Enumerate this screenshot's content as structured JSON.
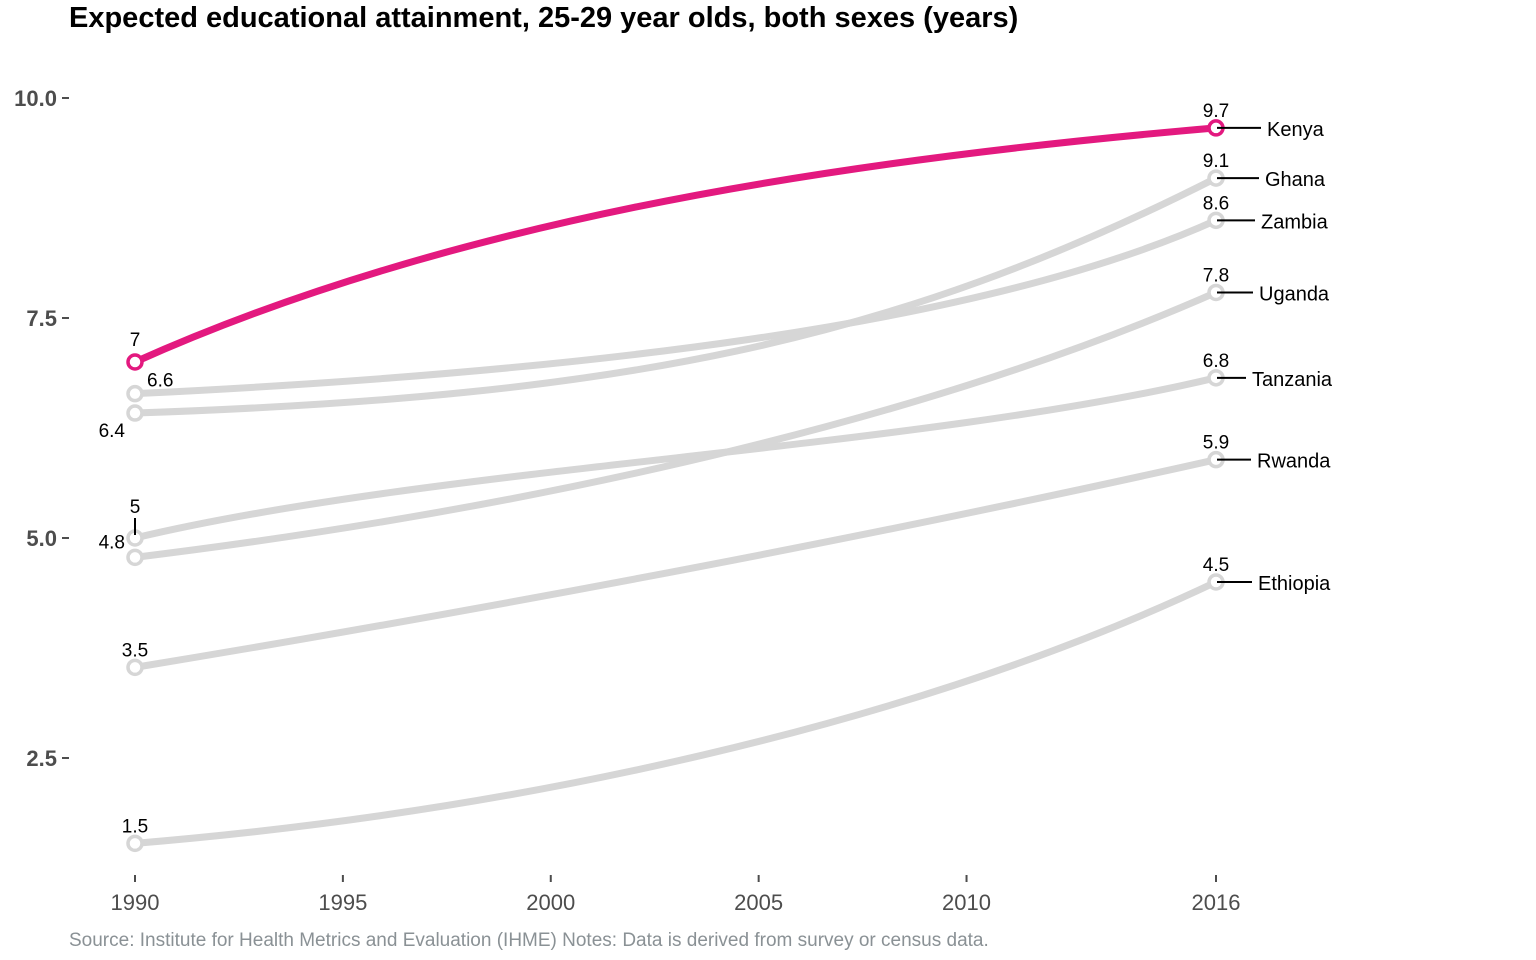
{
  "title": "Expected educational attainment, 25-29 year olds, both sexes (years)",
  "source": "Source: Institute for Health Metrics and Evaluation (IHME) Notes: Data is derived from survey or census data.",
  "colors": {
    "highlight": "#e3197f",
    "muted": "#d6d6d6",
    "axis_text": "#4d4d4d",
    "source_text": "#8a9195"
  },
  "chart_data": {
    "type": "line",
    "title": "Expected educational attainment, 25-29 year olds, both sexes (years)",
    "xlabel": "",
    "ylabel": "",
    "x": [
      1990,
      2016
    ],
    "x_ticks": [
      1990,
      1995,
      2000,
      2005,
      2010,
      2016
    ],
    "x_tick_labels": [
      "1990",
      "1995",
      "2000",
      "2005",
      "2010",
      "2016"
    ],
    "y_ticks": [
      2.5,
      5.0,
      7.5,
      10.0
    ],
    "y_tick_labels": [
      "2.5",
      "5.0",
      "7.5",
      "10.0"
    ],
    "xlim": [
      1990,
      2016
    ],
    "ylim": [
      1.5,
      10.0
    ],
    "grid": false,
    "legend": "direct labels at right end of lines",
    "series": [
      {
        "name": "Kenya",
        "values": [
          7.0,
          9.66
        ],
        "start_label": "7",
        "end_label": "9.7",
        "highlight": true
      },
      {
        "name": "Ghana",
        "values": [
          6.42,
          9.09
        ],
        "start_label": "6.4",
        "end_label": "9.1",
        "highlight": false
      },
      {
        "name": "Zambia",
        "values": [
          6.64,
          8.61
        ],
        "start_label": "6.6",
        "end_label": "8.6",
        "highlight": false
      },
      {
        "name": "Uganda",
        "values": [
          4.78,
          7.79
        ],
        "start_label": "4.8",
        "end_label": "7.8",
        "highlight": false
      },
      {
        "name": "Tanzania",
        "values": [
          5.0,
          6.82
        ],
        "start_label": "5",
        "end_label": "6.8",
        "highlight": false
      },
      {
        "name": "Rwanda",
        "values": [
          3.53,
          5.89
        ],
        "start_label": "3.5",
        "end_label": "5.9",
        "highlight": false
      },
      {
        "name": "Ethiopia",
        "values": [
          1.53,
          4.5
        ],
        "start_label": "1.5",
        "end_label": "4.5",
        "highlight": false
      }
    ]
  }
}
